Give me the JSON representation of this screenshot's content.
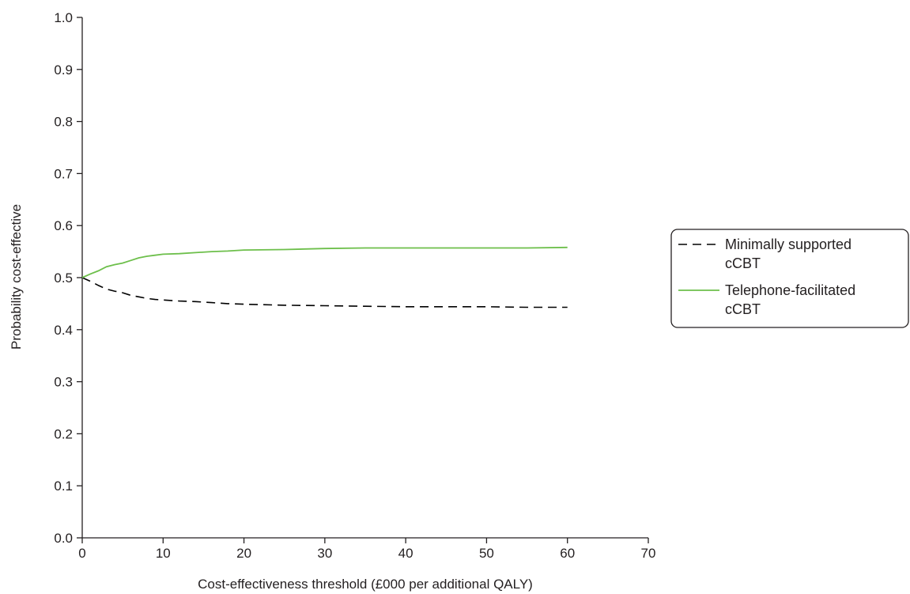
{
  "chart_data": {
    "type": "line",
    "title": "",
    "xlabel": "Cost-effectiveness threshold (£000 per additional QALY)",
    "ylabel": "Probability cost-effective",
    "xlim": [
      0,
      70
    ],
    "ylim": [
      0,
      1.0
    ],
    "x_ticks": [
      "0",
      "10",
      "20",
      "30",
      "40",
      "50",
      "60",
      "70"
    ],
    "y_ticks": [
      "0.0",
      "0.1",
      "0.2",
      "0.3",
      "0.4",
      "0.5",
      "0.6",
      "0.7",
      "0.8",
      "0.9",
      "1.0"
    ],
    "grid": false,
    "legend_position": "right",
    "series": [
      {
        "name_lines": [
          "Minimally supported",
          "cCBT"
        ],
        "color": "#000000",
        "style": "dashed",
        "x": [
          0,
          1,
          2,
          3,
          4,
          5,
          6,
          7,
          8,
          9,
          10,
          12,
          14,
          16,
          18,
          20,
          25,
          30,
          35,
          40,
          45,
          50,
          55,
          60
        ],
        "y": [
          0.5,
          0.493,
          0.485,
          0.478,
          0.474,
          0.471,
          0.466,
          0.463,
          0.46,
          0.458,
          0.457,
          0.455,
          0.454,
          0.452,
          0.45,
          0.449,
          0.447,
          0.446,
          0.445,
          0.444,
          0.444,
          0.444,
          0.443,
          0.443
        ]
      },
      {
        "name_lines": [
          "Telephone-facilitated",
          "cCBT"
        ],
        "color": "#6dbf4b",
        "style": "solid",
        "x": [
          0,
          1,
          2,
          3,
          4,
          5,
          6,
          7,
          8,
          9,
          10,
          12,
          14,
          16,
          18,
          20,
          25,
          30,
          35,
          40,
          45,
          50,
          55,
          60
        ],
        "y": [
          0.5,
          0.507,
          0.513,
          0.521,
          0.525,
          0.528,
          0.533,
          0.538,
          0.541,
          0.543,
          0.545,
          0.546,
          0.548,
          0.55,
          0.551,
          0.553,
          0.554,
          0.556,
          0.557,
          0.557,
          0.557,
          0.557,
          0.557,
          0.558
        ]
      }
    ]
  }
}
